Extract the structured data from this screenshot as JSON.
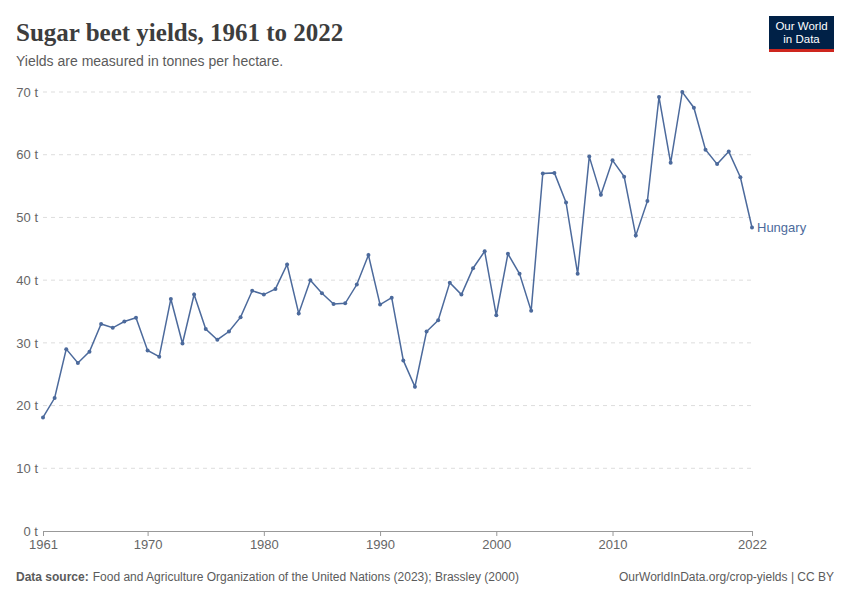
{
  "chart_data": {
    "type": "line",
    "title": "Sugar beet yields, 1961 to 2022",
    "subtitle": "Yields are measured in tonnes per hectare.",
    "source_label": "Data source:",
    "source": "Food and Agriculture Organization of the United Nations (2023); Brassley (2000)",
    "url_license": "OurWorldInData.org/crop-yields | CC BY",
    "logo": [
      "Our World",
      "in Data"
    ],
    "x": [
      1961,
      1962,
      1963,
      1964,
      1965,
      1966,
      1967,
      1968,
      1969,
      1970,
      1971,
      1972,
      1973,
      1974,
      1975,
      1976,
      1977,
      1978,
      1979,
      1980,
      1981,
      1982,
      1983,
      1984,
      1985,
      1986,
      1987,
      1988,
      1989,
      1990,
      1991,
      1992,
      1993,
      1994,
      1995,
      1996,
      1997,
      1998,
      1999,
      2000,
      2001,
      2002,
      2003,
      2004,
      2005,
      2006,
      2007,
      2008,
      2009,
      2010,
      2011,
      2012,
      2013,
      2014,
      2015,
      2016,
      2017,
      2018,
      2019,
      2020,
      2021,
      2022
    ],
    "series": [
      {
        "name": "Hungary",
        "color": "#4c6a9c",
        "marker": "circle",
        "values": [
          18.1,
          21.2,
          29.0,
          26.8,
          28.6,
          33.0,
          32.4,
          33.4,
          34.0,
          28.8,
          27.8,
          37.0,
          29.9,
          37.7,
          32.2,
          30.5,
          31.8,
          34.1,
          38.3,
          37.7,
          38.6,
          42.5,
          34.7,
          40.0,
          37.9,
          36.2,
          36.3,
          39.3,
          44.0,
          36.1,
          37.2,
          27.2,
          23.0,
          31.8,
          33.6,
          39.6,
          37.7,
          41.9,
          44.6,
          34.4,
          44.2,
          41.0,
          35.1,
          57.0,
          57.1,
          52.4,
          41.0,
          59.7,
          53.6,
          59.1,
          56.5,
          47.1,
          52.6,
          69.2,
          58.7,
          70.0,
          67.5,
          60.8,
          58.5,
          60.5,
          56.4,
          48.4
        ]
      }
    ],
    "xlim": [
      1961,
      2022
    ],
    "xticks": [
      1961,
      1970,
      1980,
      1990,
      2000,
      2010,
      2022
    ],
    "ylim": [
      0,
      70
    ],
    "yticks": [
      {
        "value": 0,
        "label": "0 t"
      },
      {
        "value": 10,
        "label": "10 t"
      },
      {
        "value": 20,
        "label": "20 t"
      },
      {
        "value": 30,
        "label": "30 t"
      },
      {
        "value": 40,
        "label": "40 t"
      },
      {
        "value": 50,
        "label": "50 t"
      },
      {
        "value": 60,
        "label": "60 t"
      },
      {
        "value": 70,
        "label": "70 t"
      }
    ],
    "grid": true
  }
}
